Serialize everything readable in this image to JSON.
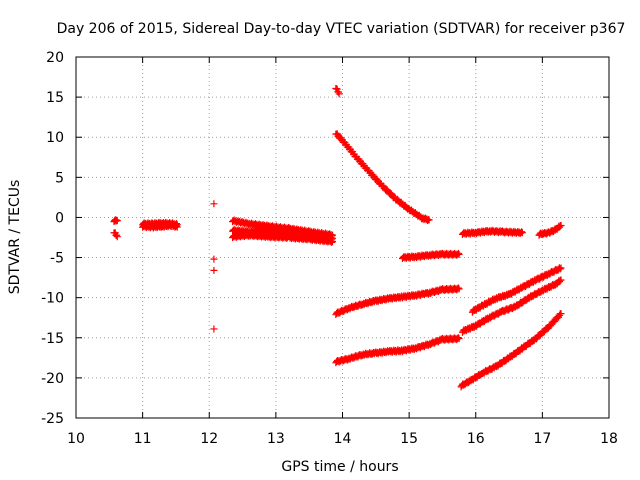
{
  "chart_data": {
    "type": "scatter",
    "title": "Day 206 of 2015, Sidereal Day-to-day VTEC variation (SDTVAR) for receiver p367",
    "xlabel": "GPS time / hours",
    "ylabel": "SDTVAR / TECUs",
    "xlim": [
      10,
      18
    ],
    "ylim": [
      -25,
      20
    ],
    "xticks": [
      10,
      11,
      12,
      13,
      14,
      15,
      16,
      17,
      18
    ],
    "yticks": [
      -25,
      -20,
      -15,
      -10,
      -5,
      0,
      5,
      10,
      15,
      20
    ],
    "grid": true,
    "legend": "none",
    "marker": "+",
    "color": "#ff0000",
    "tracks": [
      {
        "x": [
          10.57,
          10.62
        ],
        "y": [
          -0.4,
          -0.4
        ]
      },
      {
        "x": [
          10.57,
          10.62
        ],
        "y": [
          -1.8,
          -2.4
        ]
      },
      {
        "x": [
          11.0,
          11.15,
          11.3,
          11.45,
          11.52
        ],
        "y": [
          -0.8,
          -0.8,
          -0.7,
          -0.8,
          -0.9
        ]
      },
      {
        "x": [
          11.0,
          11.15,
          11.3,
          11.45,
          11.52
        ],
        "y": [
          -1.1,
          -1.2,
          -1.1,
          -1.0,
          -1.2
        ]
      },
      {
        "x": [
          12.35,
          12.6,
          12.9,
          13.2,
          13.5,
          13.85
        ],
        "y": [
          -0.4,
          -0.8,
          -1.1,
          -1.4,
          -1.8,
          -2.2
        ]
      },
      {
        "x": [
          12.35,
          12.6,
          12.9,
          13.2,
          13.5,
          13.85
        ],
        "y": [
          -1.6,
          -1.8,
          -1.7,
          -2.0,
          -2.3,
          -2.6
        ]
      },
      {
        "x": [
          12.35,
          12.6,
          12.9,
          13.2,
          13.5,
          13.85
        ],
        "y": [
          -2.4,
          -2.2,
          -2.4,
          -2.5,
          -2.7,
          -3.0
        ]
      },
      {
        "x": [
          13.9,
          14.0,
          14.2,
          14.4,
          14.6,
          14.8,
          15.0,
          15.2,
          15.3
        ],
        "y": [
          10.5,
          9.6,
          7.6,
          5.7,
          3.9,
          2.3,
          1.0,
          -0.1,
          -0.3
        ]
      },
      {
        "x": [
          13.9,
          13.95
        ],
        "y": [
          16.2,
          15.4
        ]
      },
      {
        "x": [
          14.9,
          15.1,
          15.3,
          15.5,
          15.75
        ],
        "y": [
          -5.0,
          -4.9,
          -4.7,
          -4.6,
          -4.6
        ]
      },
      {
        "x": [
          13.9,
          14.1,
          14.3,
          14.5,
          14.7,
          14.9,
          15.1,
          15.3,
          15.5,
          15.75
        ],
        "y": [
          -12.0,
          -11.3,
          -10.8,
          -10.4,
          -10.1,
          -9.9,
          -9.7,
          -9.4,
          -9.0,
          -8.9
        ]
      },
      {
        "x": [
          13.9,
          14.1,
          14.3,
          14.5,
          14.7,
          14.9,
          15.1,
          15.3,
          15.5,
          15.75
        ],
        "y": [
          -18.0,
          -17.6,
          -17.1,
          -16.9,
          -16.7,
          -16.6,
          -16.3,
          -15.8,
          -15.2,
          -15.1
        ]
      },
      {
        "x": [
          15.8,
          16.0,
          16.2,
          16.4,
          16.7
        ],
        "y": [
          -2.0,
          -1.9,
          -1.7,
          -1.8,
          -1.9
        ]
      },
      {
        "x": [
          16.95,
          17.1,
          17.2,
          17.28
        ],
        "y": [
          -2.1,
          -1.9,
          -1.5,
          -1.0
        ]
      },
      {
        "x": [
          15.8,
          16.0,
          16.2,
          16.4,
          16.6,
          16.8,
          17.0,
          17.2,
          17.28
        ],
        "y": [
          -14.2,
          -13.5,
          -12.5,
          -11.7,
          -11.1,
          -10.0,
          -9.1,
          -8.3,
          -7.8
        ]
      },
      {
        "x": [
          15.95,
          16.1,
          16.3,
          16.5,
          16.7,
          16.9,
          17.1,
          17.28
        ],
        "y": [
          -11.7,
          -11.0,
          -10.1,
          -9.6,
          -8.7,
          -7.8,
          -7.0,
          -6.3
        ]
      },
      {
        "x": [
          15.78,
          15.95,
          16.1,
          16.3,
          16.5,
          16.7,
          16.9,
          17.1,
          17.28
        ],
        "y": [
          -21.0,
          -20.2,
          -19.4,
          -18.6,
          -17.5,
          -16.3,
          -15.1,
          -13.6,
          -12.0
        ]
      }
    ],
    "points": [
      {
        "x": 12.07,
        "y": 1.7
      },
      {
        "x": 12.07,
        "y": -5.2
      },
      {
        "x": 12.07,
        "y": -6.6
      },
      {
        "x": 12.07,
        "y": -13.9
      }
    ]
  }
}
